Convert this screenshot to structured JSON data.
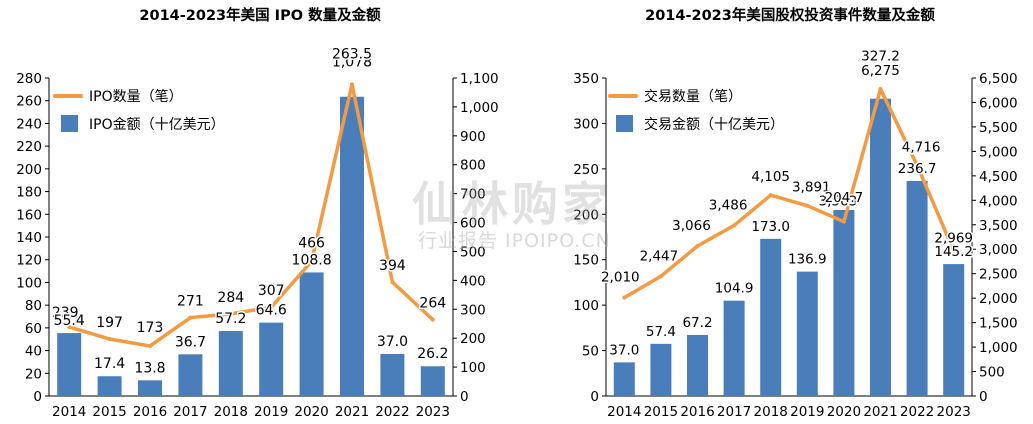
{
  "chart_data": [
    {
      "type": "bar+line",
      "title": "2014-2023年美国 IPO 数量及金额",
      "categories": [
        "2014",
        "2015",
        "2016",
        "2017",
        "2018",
        "2019",
        "2020",
        "2021",
        "2022",
        "2023"
      ],
      "series": [
        {
          "name": "IPO数量（笔）",
          "type": "line",
          "axis": "right",
          "color": "#F39A43",
          "values": [
            239,
            197,
            173,
            271,
            284,
            307,
            466,
            1078,
            394,
            264
          ],
          "labels": [
            "239",
            "197",
            "173",
            "271",
            "284",
            "307",
            "466",
            "1,078",
            "394",
            "264"
          ]
        },
        {
          "name": "IPO金额（十亿美元）",
          "type": "bar",
          "axis": "left",
          "color": "#4A7EBB",
          "values": [
            55.4,
            17.4,
            13.8,
            36.7,
            57.2,
            64.6,
            108.8,
            263.5,
            37.0,
            26.2
          ],
          "labels": [
            "55.4",
            "17.4",
            "13.8",
            "36.7",
            "57.2",
            "64.6",
            "108.8",
            "263.5",
            "37.0",
            "26.2"
          ]
        }
      ],
      "left_axis": {
        "min": 0,
        "max": 280,
        "step": 20,
        "ticks": [
          "0",
          "20",
          "40",
          "60",
          "80",
          "100",
          "120",
          "140",
          "160",
          "180",
          "200",
          "220",
          "240",
          "260",
          "280"
        ]
      },
      "right_axis": {
        "min": 0,
        "max": 1100,
        "step": 100,
        "ticks": [
          "0",
          "100",
          "200",
          "300",
          "400",
          "500",
          "600",
          "700",
          "800",
          "900",
          "1,000",
          "1,100"
        ]
      },
      "legend_position": "top-left",
      "grid": false
    },
    {
      "type": "bar+line",
      "title": "2014-2023年美国股权投资事件数量及金额",
      "categories": [
        "2014",
        "2015",
        "2016",
        "2017",
        "2018",
        "2019",
        "2020",
        "2021",
        "2022",
        "2023"
      ],
      "series": [
        {
          "name": "交易数量（笔）",
          "type": "line",
          "axis": "right",
          "color": "#F39A43",
          "values": [
            2010,
            2447,
            3066,
            3486,
            4105,
            3891,
            3563,
            6275,
            4716,
            2969
          ],
          "labels": [
            "2,010",
            "2,447",
            "3,066",
            "3,486",
            "4,105",
            "3,891",
            "3,563",
            "6,275",
            "4,716",
            "2,969"
          ]
        },
        {
          "name": "交易金额（十亿美元）",
          "type": "bar",
          "axis": "left",
          "color": "#4A7EBB",
          "values": [
            37.0,
            57.4,
            67.2,
            104.9,
            173.0,
            136.9,
            204.7,
            327.2,
            236.7,
            145.2
          ],
          "labels": [
            "37.0",
            "57.4",
            "67.2",
            "104.9",
            "173.0",
            "136.9",
            "204.7",
            "327.2",
            "236.7",
            "145.2"
          ]
        }
      ],
      "left_axis": {
        "min": 0,
        "max": 350,
        "step": 50,
        "ticks": [
          "0",
          "50",
          "100",
          "150",
          "200",
          "250",
          "300",
          "350"
        ]
      },
      "right_axis": {
        "min": 0,
        "max": 6500,
        "step": 500,
        "ticks": [
          "0",
          "500",
          "1,000",
          "1,500",
          "2,000",
          "2,500",
          "3,000",
          "3,500",
          "4,000",
          "4,500",
          "5,000",
          "5,500",
          "6,000",
          "6,500"
        ]
      },
      "legend_position": "top-left",
      "grid": false
    }
  ],
  "watermark": {
    "title": "仙林购家",
    "subtitle": "行业报告 IPOIPO.CN"
  }
}
